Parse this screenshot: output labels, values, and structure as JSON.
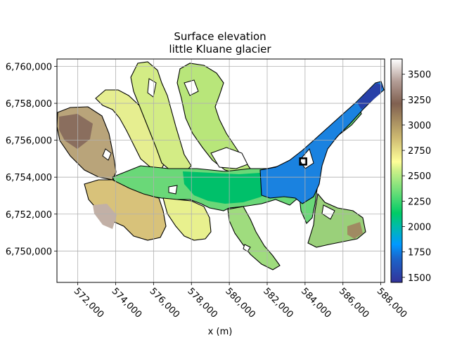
{
  "chart_data": {
    "type": "heatmap",
    "title": "Surface elevation",
    "subtitle": "little Kluane glacier",
    "xlabel": "x (m)",
    "ylabel": "",
    "x_ticks": [
      572000,
      574000,
      576000,
      578000,
      580000,
      582000,
      584000,
      586000,
      588000
    ],
    "x_tick_labels": [
      "572,000",
      "574,000",
      "576,000",
      "578,000",
      "580,000",
      "582,000",
      "584,000",
      "586,000",
      "588,000"
    ],
    "y_ticks": [
      6750000,
      6752000,
      6754000,
      6756000,
      6758000,
      6760000
    ],
    "y_tick_labels": [
      "6,750,000",
      "6,752,000",
      "6,754,000",
      "6,756,000",
      "6,758,000",
      "6,760,000"
    ],
    "xlim": [
      570900,
      588200
    ],
    "ylim": [
      6748300,
      6760400
    ],
    "grid": true,
    "colorbar": {
      "colormap": "terrain",
      "range": [
        1450,
        3650
      ],
      "ticks": [
        1500,
        1750,
        2000,
        2250,
        2500,
        2750,
        3000,
        3250,
        3500
      ],
      "tick_labels": [
        "1500",
        "1750",
        "2000",
        "2250",
        "2500",
        "2750",
        "3000",
        "3250",
        "3500"
      ]
    },
    "marker": {
      "shape": "square",
      "x": 583900,
      "y": 6754850
    },
    "elevation_samples": [
      {
        "x": 588000,
        "y": 6758700,
        "z": 1500
      },
      {
        "x": 586000,
        "y": 6756500,
        "z": 1650
      },
      {
        "x": 584200,
        "y": 6755000,
        "z": 1720
      },
      {
        "x": 583000,
        "y": 6754300,
        "z": 1780
      },
      {
        "x": 581500,
        "y": 6754000,
        "z": 1870
      },
      {
        "x": 580000,
        "y": 6753900,
        "z": 1950
      },
      {
        "x": 578500,
        "y": 6753700,
        "z": 2050
      },
      {
        "x": 576500,
        "y": 6753500,
        "z": 2250
      },
      {
        "x": 574500,
        "y": 6752500,
        "z": 2500
      },
      {
        "x": 572500,
        "y": 6756000,
        "z": 3000
      },
      {
        "x": 573500,
        "y": 6750700,
        "z": 3200
      },
      {
        "x": 579000,
        "y": 6759000,
        "z": 2500
      },
      {
        "x": 587000,
        "y": 6751000,
        "z": 2750
      },
      {
        "x": 583000,
        "y": 6749500,
        "z": 2300
      }
    ]
  }
}
